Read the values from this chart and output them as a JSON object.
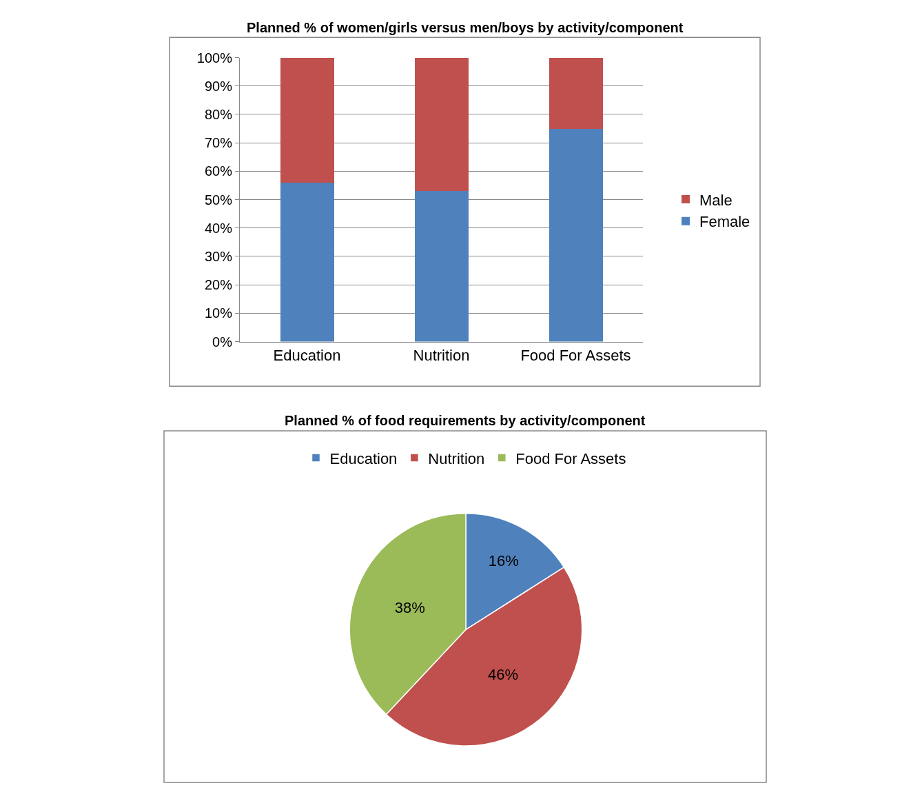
{
  "chart_data": [
    {
      "type": "bar",
      "title": "Planned % of women/girls versus men/boys by activity/component",
      "categories": [
        "Education",
        "Nutrition",
        "Food For Assets"
      ],
      "stacked": true,
      "series": [
        {
          "name": "Female",
          "color": "#4f81bd",
          "values": [
            56,
            53,
            75
          ]
        },
        {
          "name": "Male",
          "color": "#c0504d",
          "values": [
            44,
            47,
            25
          ]
        }
      ],
      "ylim": [
        0,
        100
      ],
      "yticks": [
        {
          "value": 0,
          "label": "0%"
        },
        {
          "value": 10,
          "label": "10%"
        },
        {
          "value": 20,
          "label": "20%"
        },
        {
          "value": 30,
          "label": "30%"
        },
        {
          "value": 40,
          "label": "40%"
        },
        {
          "value": 50,
          "label": "50%"
        },
        {
          "value": 60,
          "label": "60%"
        },
        {
          "value": 70,
          "label": "70%"
        },
        {
          "value": 80,
          "label": "80%"
        },
        {
          "value": 90,
          "label": "90%"
        },
        {
          "value": 100,
          "label": "100%"
        }
      ],
      "grid": "y",
      "legend": "right"
    },
    {
      "type": "pie",
      "title": "Planned % of food requirements by activity/component",
      "categories": [
        "Education",
        "Nutrition",
        "Food For Assets"
      ],
      "values": [
        16,
        46,
        38
      ],
      "colors": [
        "#4f81bd",
        "#c0504d",
        "#9bbb59"
      ],
      "value_labels": [
        "16%",
        "46%",
        "38%"
      ],
      "legend": "top"
    }
  ]
}
